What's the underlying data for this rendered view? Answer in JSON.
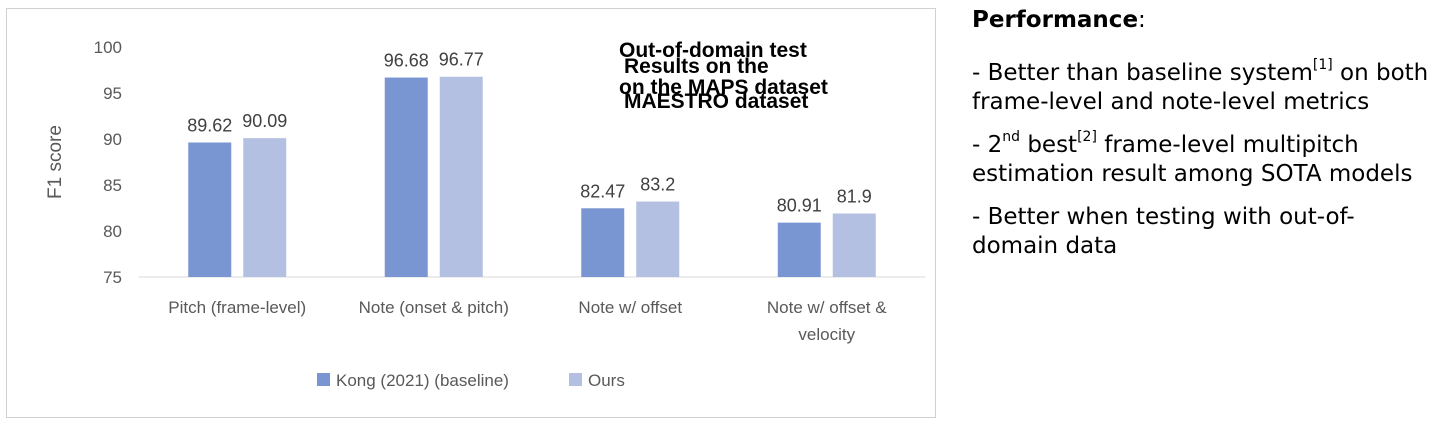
{
  "chart_data": {
    "type": "bar",
    "categories": [
      [
        "Pitch (frame-level)"
      ],
      [
        "Note (onset & pitch)"
      ],
      [
        "Note w/ offset"
      ],
      [
        "Note w/ offset &",
        "velocity"
      ]
    ],
    "series": [
      {
        "name": "Kong (2021) (baseline)",
        "values": [
          89.62,
          96.68,
          82.47,
          80.91
        ],
        "labels": [
          "89.62",
          "96.68",
          "82.47",
          "80.91"
        ],
        "color": "#7a96d2"
      },
      {
        "name": "Ours",
        "values": [
          90.09,
          96.77,
          83.2,
          81.9
        ],
        "labels": [
          "90.09",
          "96.77",
          "83.2",
          "81.9"
        ],
        "color": "#b4c0e2"
      }
    ],
    "ylabel": "F1 score",
    "ylim": [
      75,
      100
    ],
    "yticks": [
      "75",
      "80",
      "85",
      "90",
      "95",
      "100"
    ],
    "legend_position": "bottom",
    "overlay_texts": [
      [
        "Out-of-domain test",
        "on the MAPS dataset"
      ],
      [
        "Results on the",
        "MAESTRO dataset"
      ]
    ]
  },
  "notes": {
    "heading": "Performance",
    "heading_suffix": ":",
    "b1": {
      "pre": "- Better than baseline system",
      "sup": "[1]",
      "post": " on both frame-level and note-level metrics"
    },
    "b2": {
      "pre": "- 2",
      "sup1": "nd",
      "mid": " best",
      "sup2": "[2]",
      "post": " frame-level multipitch estimation result among SOTA models"
    },
    "b3": {
      "text": "- Better when testing with out-of-domain data"
    }
  }
}
